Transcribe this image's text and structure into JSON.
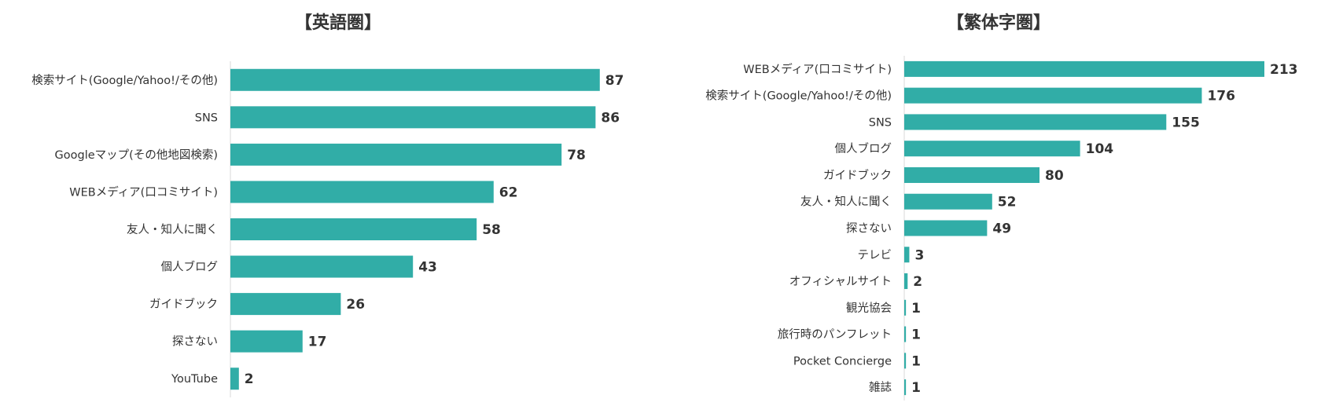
{
  "chart_data": [
    {
      "type": "bar",
      "orientation": "horizontal",
      "title": "【英語圏】",
      "categories": [
        "検索サイト(Google/Yahoo!/その他)",
        "SNS",
        "Googleマップ(その他地図検索)",
        "WEBメディア(口コミサイト)",
        "友人・知人に聞く",
        "個人ブログ",
        "ガイドブック",
        "探さない",
        "YouTube"
      ],
      "values": [
        87,
        86,
        78,
        62,
        58,
        43,
        26,
        17,
        2
      ],
      "xlim": [
        0,
        100
      ],
      "grid": false,
      "legend": "none",
      "bar_color": "#31ADA7"
    },
    {
      "type": "bar",
      "orientation": "horizontal",
      "title": "【繁体字圏】",
      "categories": [
        "WEBメディア(口コミサイト)",
        "検索サイト(Google/Yahoo!/その他)",
        "SNS",
        "個人ブログ",
        "ガイドブック",
        "友人・知人に聞く",
        "探さない",
        "テレビ",
        "オフィシャルサイト",
        "観光協会",
        "旅行時のパンフレット",
        "Pocket Concierge",
        "雑誌"
      ],
      "values": [
        213,
        176,
        155,
        104,
        80,
        52,
        49,
        3,
        2,
        1,
        1,
        1,
        1
      ],
      "xlim": [
        0,
        213
      ],
      "grid": false,
      "legend": "none",
      "bar_color": "#31ADA7"
    }
  ]
}
